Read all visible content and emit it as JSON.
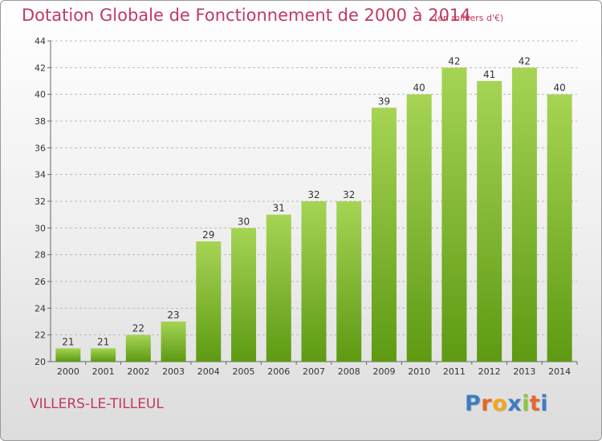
{
  "title": "Dotation Globale de Fonctionnement de 2000 à 2014",
  "unit_note": "(en milliers d'€)",
  "commune": "VILLERS-LE-TILLEUL",
  "logo": {
    "letters": [
      "P",
      "r",
      "o",
      "x",
      "i",
      "t",
      "i"
    ],
    "colors": [
      "#3b7dc3",
      "#e4672b",
      "#f2a71e",
      "#3b7dc3",
      "#8cc63f",
      "#e4672b",
      "#3b7dc3"
    ]
  },
  "colors": {
    "bar_top": "#a6d455",
    "bar_bottom": "#5d9a12",
    "title": "#c2395e",
    "grid": "#bbbbbb"
  },
  "chart_data": {
    "type": "bar",
    "categories": [
      "2000",
      "2001",
      "2002",
      "2003",
      "2004",
      "2005",
      "2006",
      "2007",
      "2008",
      "2009",
      "2010",
      "2011",
      "2012",
      "2013",
      "2014"
    ],
    "values": [
      21,
      21,
      22,
      23,
      29,
      30,
      31,
      32,
      32,
      39,
      40,
      42,
      41,
      42,
      40
    ],
    "yticks": [
      20,
      22,
      24,
      26,
      28,
      30,
      32,
      34,
      36,
      38,
      40,
      42,
      44
    ],
    "ylim": [
      20,
      44
    ],
    "grid": true,
    "grid_style": "dashed-horizontal",
    "data_labels": true
  }
}
